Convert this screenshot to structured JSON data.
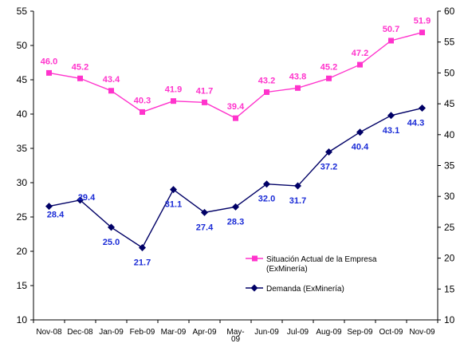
{
  "chart_data": {
    "type": "line",
    "categories": [
      "Nov-08",
      "Dec-08",
      "Jan-09",
      "Feb-09",
      "Mar-09",
      "Apr-09",
      "May-09",
      "Jun-09",
      "Jul-09",
      "Aug-09",
      "Sep-09",
      "Oct-09",
      "Nov-09"
    ],
    "category_lines": [
      [
        "Nov-08"
      ],
      [
        "Dec-08"
      ],
      [
        "Jan-09"
      ],
      [
        "Feb-09"
      ],
      [
        "Mar-09"
      ],
      [
        "Apr-09"
      ],
      [
        "May-",
        "09"
      ],
      [
        "Jun-09"
      ],
      [
        "Jul-09"
      ],
      [
        "Aug-09"
      ],
      [
        "Sep-09"
      ],
      [
        "Oct-09"
      ],
      [
        "Nov-09"
      ]
    ],
    "left_axis": {
      "ylim": [
        10,
        55
      ],
      "ticks": [
        "10",
        "15",
        "20",
        "25",
        "30",
        "35",
        "40",
        "45",
        "50",
        "55"
      ]
    },
    "right_axis": {
      "ylim": [
        10,
        60
      ],
      "ticks": [
        "10",
        "15",
        "20",
        "25",
        "30",
        "35",
        "40",
        "45",
        "50",
        "55",
        "60"
      ]
    },
    "series": [
      {
        "name": "Situación Actual de la Empresa (ExMinería)",
        "legend_lines": [
          "Situación Actual de la Empresa",
          "(ExMinería)"
        ],
        "axis": "left",
        "color": "#ff33cc",
        "marker": "square",
        "values": [
          46.0,
          45.2,
          43.4,
          40.3,
          41.9,
          41.7,
          39.4,
          43.2,
          43.8,
          45.2,
          47.2,
          50.7,
          51.9
        ],
        "labels": [
          "46.0",
          "45.2",
          "43.4",
          "40.3",
          "41.9",
          "41.7",
          "39.4",
          "43.2",
          "43.8",
          "45.2",
          "47.2",
          "50.7",
          "51.9"
        ]
      },
      {
        "name": "Demanda (ExMinería)",
        "legend_lines": [
          "Demanda (ExMinería)"
        ],
        "axis": "right",
        "color": "#000066",
        "label_color": "#1a2bd6",
        "marker": "diamond",
        "values": [
          28.4,
          29.4,
          25.0,
          21.7,
          31.1,
          27.4,
          28.3,
          32.0,
          31.7,
          37.2,
          40.4,
          43.1,
          44.3
        ],
        "labels": [
          "28.4",
          "29.4",
          "25.0",
          "21.7",
          "31.1",
          "27.4",
          "28.3",
          "32.0",
          "31.7",
          "37.2",
          "40.4",
          "43.1",
          "44.3"
        ]
      }
    ],
    "grid": false,
    "legend_position": "bottom-right"
  }
}
